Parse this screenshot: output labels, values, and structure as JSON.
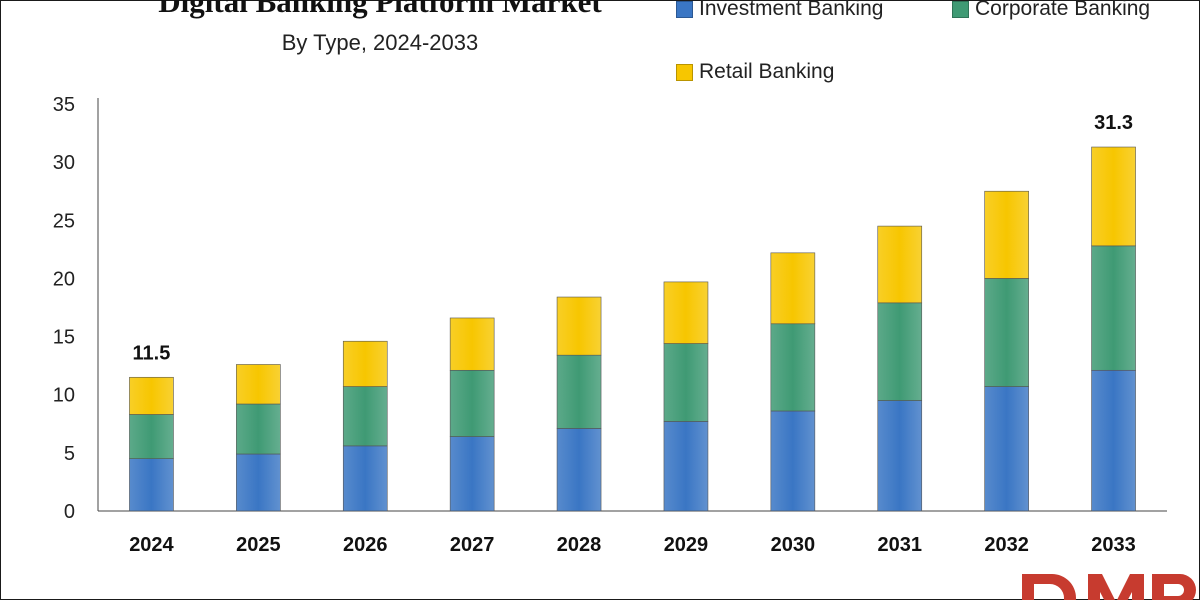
{
  "colors": {
    "investment": "#3a76c4",
    "corporate": "#3f9a74",
    "retail": "#f7c600"
  },
  "logo": {
    "text": "DMR",
    "color": "#c73b2f",
    "icon": "dmr-logo"
  },
  "chart_data": {
    "type": "bar",
    "stacked": true,
    "title": "Digital Banking Platform Market",
    "subtitle": "By Type, 2024-2033",
    "xlabel": "",
    "ylabel": "",
    "categories": [
      "2024",
      "2025",
      "2026",
      "2027",
      "2028",
      "2029",
      "2030",
      "2031",
      "2032",
      "2033"
    ],
    "series": [
      {
        "name": "Investment Banking",
        "values": [
          4.5,
          4.9,
          5.6,
          6.4,
          7.1,
          7.7,
          8.6,
          9.5,
          10.7,
          12.1
        ]
      },
      {
        "name": "Corporate Banking",
        "values": [
          3.8,
          4.3,
          5.1,
          5.7,
          6.3,
          6.7,
          7.5,
          8.4,
          9.3,
          10.7
        ]
      },
      {
        "name": "Retail Banking",
        "values": [
          3.2,
          3.4,
          3.9,
          4.5,
          5.0,
          5.3,
          6.1,
          6.6,
          7.5,
          8.5
        ]
      }
    ],
    "totals_labels": [
      {
        "category": "2024",
        "text": "11.5",
        "value": 11.5
      },
      {
        "category": "2033",
        "text": "31.3",
        "value": 31.3
      }
    ],
    "ylim": [
      0,
      35
    ],
    "yticks": [
      "0",
      "5",
      "10",
      "15",
      "20",
      "25",
      "30",
      "35"
    ],
    "grid": false,
    "legend_position": "top-right"
  }
}
